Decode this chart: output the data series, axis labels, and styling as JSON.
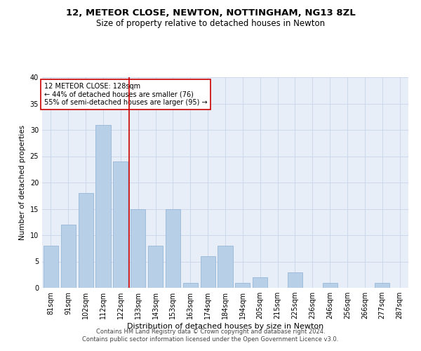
{
  "title": "12, METEOR CLOSE, NEWTON, NOTTINGHAM, NG13 8ZL",
  "subtitle": "Size of property relative to detached houses in Newton",
  "xlabel": "Distribution of detached houses by size in Newton",
  "ylabel": "Number of detached properties",
  "categories": [
    "81sqm",
    "91sqm",
    "102sqm",
    "112sqm",
    "122sqm",
    "133sqm",
    "143sqm",
    "153sqm",
    "163sqm",
    "174sqm",
    "184sqm",
    "194sqm",
    "205sqm",
    "215sqm",
    "225sqm",
    "236sqm",
    "246sqm",
    "256sqm",
    "266sqm",
    "277sqm",
    "287sqm"
  ],
  "values": [
    8,
    12,
    18,
    31,
    24,
    15,
    8,
    15,
    1,
    6,
    8,
    1,
    2,
    0,
    3,
    0,
    1,
    0,
    0,
    1,
    0
  ],
  "bar_color": "#b8cfe8",
  "bar_edge_color": "#8eb0d4",
  "vline_x": 4.5,
  "vline_color": "#cc0000",
  "annotation_text": "12 METEOR CLOSE: 128sqm\n← 44% of detached houses are smaller (76)\n55% of semi-detached houses are larger (95) →",
  "annotation_box_color": "#ffffff",
  "annotation_box_edge_color": "#cc0000",
  "ylim": [
    0,
    40
  ],
  "yticks": [
    0,
    5,
    10,
    15,
    20,
    25,
    30,
    35,
    40
  ],
  "grid_color": "#c8d4e8",
  "background_color": "#e8eef8",
  "footer_text": "Contains HM Land Registry data © Crown copyright and database right 2024.\nContains public sector information licensed under the Open Government Licence v3.0.",
  "title_fontsize": 9.5,
  "subtitle_fontsize": 8.5,
  "xlabel_fontsize": 8,
  "ylabel_fontsize": 7.5,
  "tick_fontsize": 7,
  "annotation_fontsize": 7,
  "footer_fontsize": 6
}
